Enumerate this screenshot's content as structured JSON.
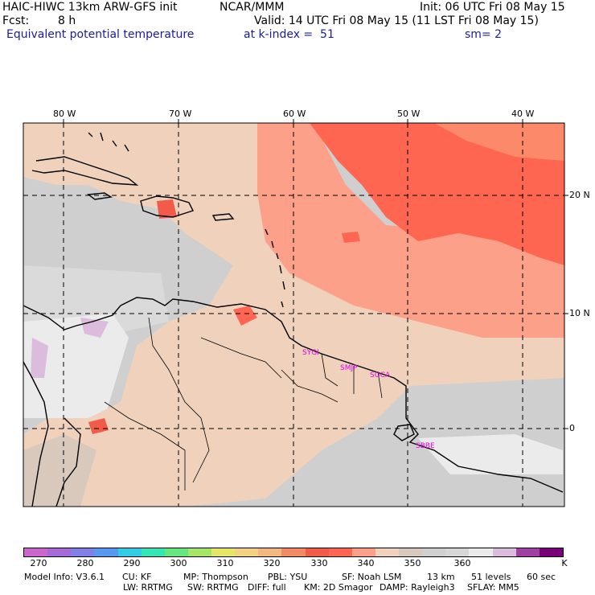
{
  "header": {
    "model": "HAIC-HIWC 13km ARW-GFS init",
    "org": "NCAR/MMM",
    "init": "Init: 06 UTC Fri 08 May 15",
    "fcst_label": "Fcst:",
    "fcst_value": "8 h",
    "valid": "Valid: 14 UTC Fri 08 May 15 (11 LST Fri 08 May 15)",
    "field": "Equivalent potential temperature",
    "level": "at k-index =  51",
    "smooth": "sm= 2"
  },
  "map": {
    "lon_labels": [
      "80 W",
      "70 W",
      "60 W",
      "50 W",
      "40 W"
    ],
    "lat_labels": [
      "20 N",
      "10 N",
      "0"
    ],
    "stations": [
      "SYGI",
      "SMJP",
      "SOCA",
      "SBBE"
    ]
  },
  "colorbar": {
    "colors": [
      "#cc66cc",
      "#a66ad6",
      "#8080e6",
      "#5599f0",
      "#33cce6",
      "#33e6b3",
      "#66e680",
      "#a6e666",
      "#e6e666",
      "#f2d280",
      "#f2b880",
      "#f28a66",
      "#f25a4a",
      "#ff6652",
      "#fca08a",
      "#f0d2bc",
      "#d9c9bd",
      "#cfcfcf",
      "#d6d6d6",
      "#ebebeb",
      "#dcbcdc",
      "#a040a0",
      "#7a007a"
    ],
    "labels": [
      "270",
      "280",
      "290",
      "300",
      "310",
      "320",
      "330",
      "340",
      "350",
      "360"
    ],
    "unit": "K"
  },
  "footer": {
    "line1": [
      "Model Info: V3.6.1",
      "CU: KF",
      "MP: Thompson",
      "PBL: YSU",
      "SF: Noah LSM",
      "13 km",
      "51 levels",
      "60 sec"
    ],
    "line2": [
      "LW: RRTMG",
      "SW: RRTMG",
      "DIFF: full",
      "KM: 2D Smagor",
      "DAMP: Rayleigh3",
      "SFLAY: MM5"
    ]
  }
}
